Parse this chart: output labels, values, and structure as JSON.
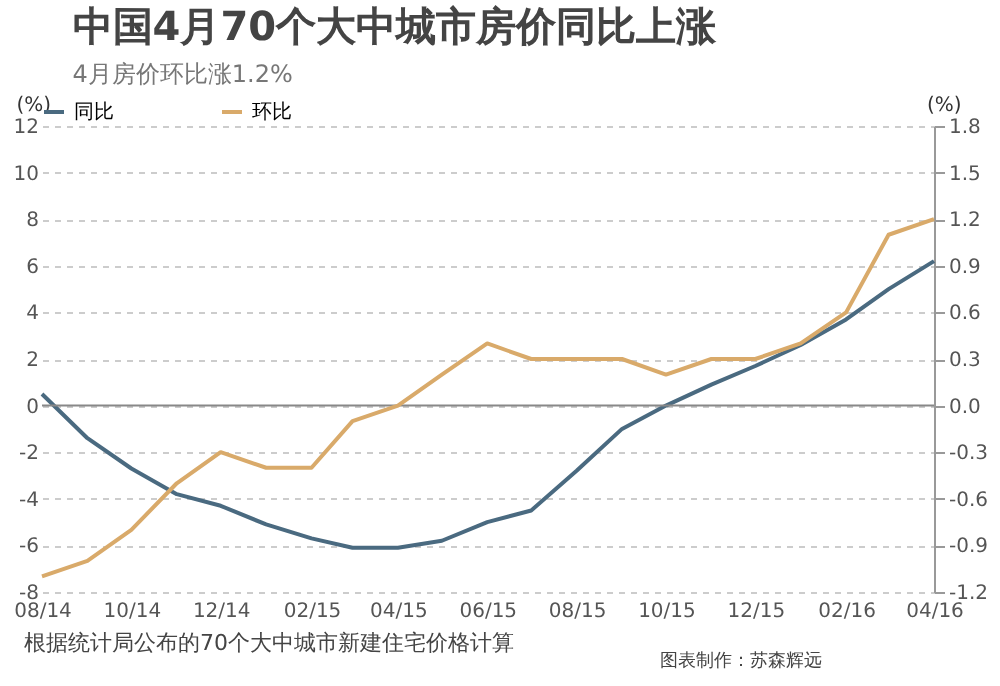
{
  "chart_data": {
    "type": "line",
    "title": "中国4月70个大中城市房价同比上涨",
    "subtitle": "4月房价环比涨1.2%",
    "ylabel": "(%)",
    "y2label": "(%)",
    "x": [
      "2014-08",
      "2014-09",
      "2014-10",
      "2014-11",
      "2014-12",
      "2015-01",
      "2015-02",
      "2015-03",
      "2015-04",
      "2015-05",
      "2015-06",
      "2015-07",
      "2015-08",
      "2015-09",
      "2015-10",
      "2015-11",
      "2015-12",
      "2016-01",
      "2016-02",
      "2016-03",
      "2016-04"
    ],
    "xlim": [
      "2014-08",
      "2016-04"
    ],
    "xticks": [
      {
        "value": "2014-08",
        "label": "08/14"
      },
      {
        "value": "2014-10",
        "label": "10/14"
      },
      {
        "value": "2014-12",
        "label": "12/14"
      },
      {
        "value": "2015-02",
        "label": "02/15"
      },
      {
        "value": "2015-04",
        "label": "04/15"
      },
      {
        "value": "2015-06",
        "label": "06/15"
      },
      {
        "value": "2015-08",
        "label": "08/15"
      },
      {
        "value": "2015-10",
        "label": "10/15"
      },
      {
        "value": "2015-12",
        "label": "12/15"
      },
      {
        "value": "2016-02",
        "label": "02/16"
      },
      {
        "value": "2016-04",
        "label": "04/16"
      }
    ],
    "series": [
      {
        "name": "同比",
        "color": "#4a6a80",
        "values": [
          0.5,
          -1.4,
          -2.7,
          -3.8,
          -4.3,
          -5.1,
          -5.7,
          -6.1,
          -6.1,
          -5.8,
          -5.0,
          -4.5,
          -2.8,
          -1.0,
          0.0,
          0.9,
          1.7,
          2.6,
          3.7,
          5.0,
          6.2
        ]
      },
      {
        "name": "环比",
        "color": "#d9aa6a",
        "axis": "y2",
        "values": [
          -1.1,
          -1.0,
          -0.8,
          -0.5,
          -0.3,
          -0.4,
          -0.4,
          -0.1,
          0.0,
          0.2,
          0.4,
          0.3,
          0.3,
          0.3,
          0.2,
          0.3,
          0.3,
          0.4,
          0.6,
          1.1,
          1.2
        ]
      }
    ],
    "ylim": [
      -8,
      12
    ],
    "yticks": [
      -8,
      -6,
      -4,
      -2,
      0,
      2,
      4,
      6,
      8,
      10,
      12
    ],
    "y2lim": [
      -1.2,
      1.8
    ],
    "y2ticks": [
      -1.2,
      -0.9,
      -0.6,
      -0.3,
      {
        "value": 0,
        "label": "0.0"
      },
      0.3,
      0.6,
      0.9,
      1.2,
      1.5,
      1.8
    ],
    "ref_lines": [
      {
        "axis": "y",
        "value": 0
      }
    ],
    "grid": "y",
    "legend": "top",
    "annotations": [
      "根据统计局公布的70个大中城市新建住宅价格计算",
      "图表制作：苏森辉远"
    ]
  }
}
